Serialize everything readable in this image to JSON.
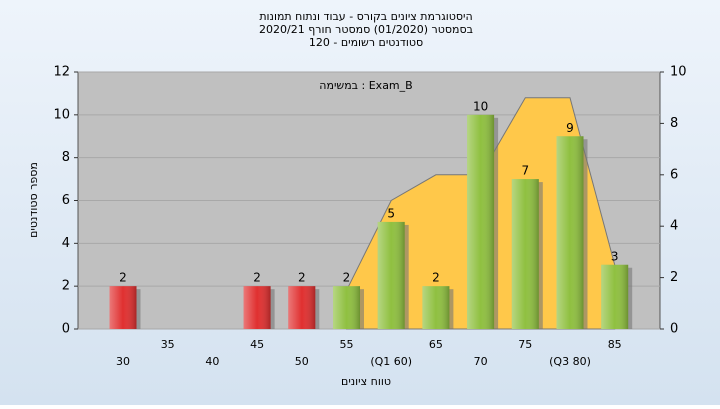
{
  "chart_data": {
    "type": "bar",
    "title": [
      "היסטוגרמת ציונים בקורס - עבוד ונתוח תמונות",
      "בסמסטר  (01/2020)  סמסטר חורף 2020/21",
      "סטודנטים רשומים - 120"
    ],
    "annotation": "במשימה : Exam_B",
    "x_label": "טווח ציונים",
    "y_label": "מספר סטודנטים",
    "categories": [
      "30",
      "35",
      "40",
      "45",
      "50",
      "55",
      "(Q1 60)",
      "65",
      "70",
      "75",
      "(Q3 80)",
      "85"
    ],
    "values": [
      2,
      null,
      null,
      2,
      2,
      2,
      5,
      2,
      10,
      7,
      9,
      3
    ],
    "colors": [
      "#e03030",
      null,
      null,
      "#e03030",
      "#e03030",
      "#8fc040",
      "#8fc040",
      "#8fc040",
      "#8fc040",
      "#8fc040",
      "#8fc040",
      "#8fc040"
    ],
    "area": {
      "color": "#ffc84a",
      "axis": "y2",
      "values": [
        null,
        null,
        null,
        null,
        null,
        1.5,
        5,
        6,
        6,
        9,
        9,
        2.5
      ]
    },
    "ylim": [
      0,
      12
    ],
    "yticks": [
      0,
      2,
      4,
      6,
      8,
      10,
      12
    ],
    "y2lim": [
      0,
      10
    ],
    "y2ticks": [
      0,
      2,
      4,
      6,
      8,
      10
    ],
    "grid": true
  }
}
